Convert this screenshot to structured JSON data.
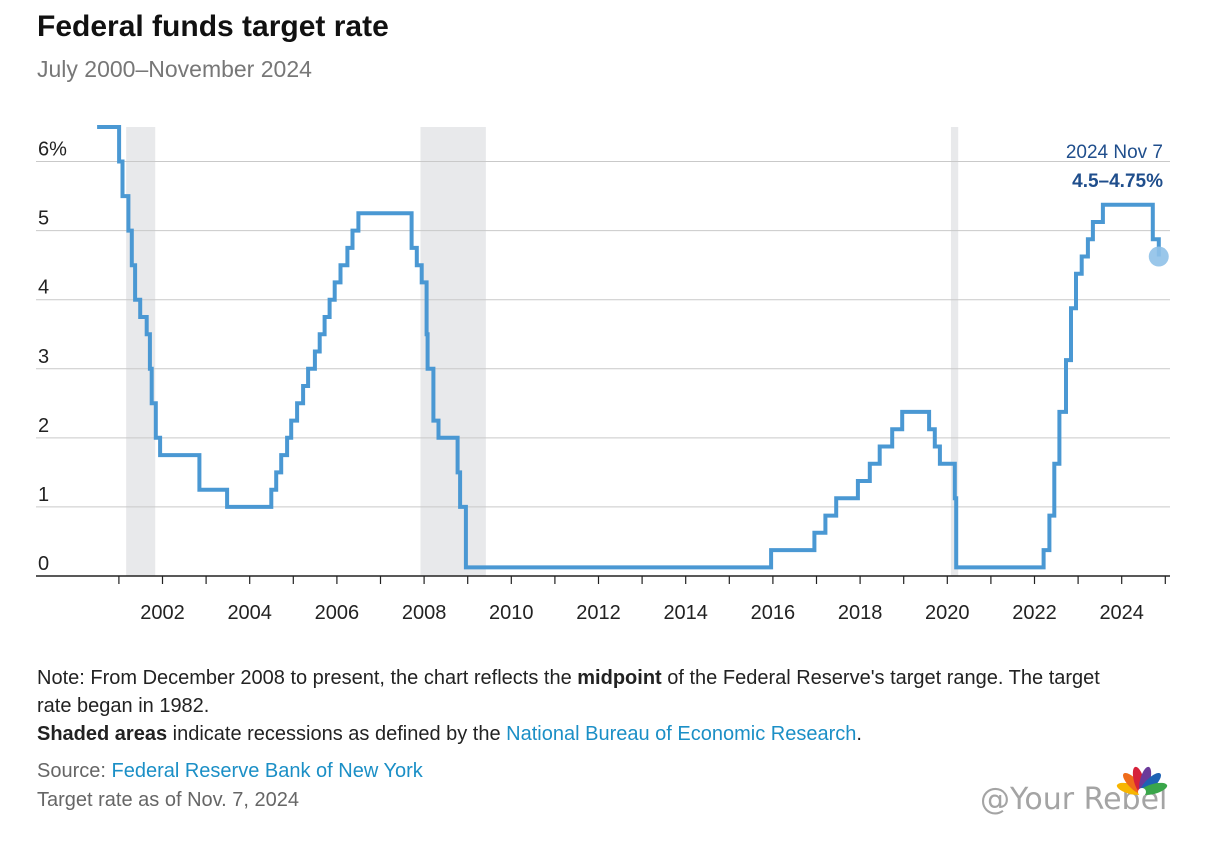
{
  "header": {
    "title": "Federal funds target rate",
    "subtitle": "July 2000–November 2024"
  },
  "chart_data": {
    "type": "line",
    "title": "Federal funds target rate",
    "subtitle": "July 2000–November 2024",
    "xlabel": "",
    "ylabel": "",
    "y_unit": "%",
    "xlim": [
      "2000-07-01",
      "2024-11-30"
    ],
    "ylim": [
      0,
      6.5
    ],
    "y_ticks": [
      0,
      1,
      2,
      3,
      4,
      5,
      6
    ],
    "y_tick_labels": [
      "0",
      "1",
      "2",
      "3",
      "4",
      "5",
      "6%"
    ],
    "x_ticks": [
      "2002",
      "2004",
      "2006",
      "2008",
      "2010",
      "2012",
      "2014",
      "2016",
      "2018",
      "2020",
      "2022",
      "2024"
    ],
    "grid": "horizontal",
    "step": true,
    "line_color": "#4a98d3",
    "recession_color": "#e8e9eb",
    "recessions": [
      {
        "start": "2001-03",
        "end": "2001-11"
      },
      {
        "start": "2007-12",
        "end": "2009-06"
      },
      {
        "start": "2020-02",
        "end": "2020-04"
      }
    ],
    "series": [
      {
        "values": [
          {
            "date": "2000-07-01",
            "value": 6.5
          },
          {
            "date": "2001-01-03",
            "value": 6.0
          },
          {
            "date": "2001-01-31",
            "value": 5.5
          },
          {
            "date": "2001-03-20",
            "value": 5.0
          },
          {
            "date": "2001-04-18",
            "value": 4.5
          },
          {
            "date": "2001-05-15",
            "value": 4.0
          },
          {
            "date": "2001-06-27",
            "value": 3.75
          },
          {
            "date": "2001-08-21",
            "value": 3.5
          },
          {
            "date": "2001-09-17",
            "value": 3.0
          },
          {
            "date": "2001-10-02",
            "value": 2.5
          },
          {
            "date": "2001-11-06",
            "value": 2.0
          },
          {
            "date": "2001-12-11",
            "value": 1.75
          },
          {
            "date": "2002-11-06",
            "value": 1.25
          },
          {
            "date": "2003-06-25",
            "value": 1.0
          },
          {
            "date": "2004-06-30",
            "value": 1.25
          },
          {
            "date": "2004-08-10",
            "value": 1.5
          },
          {
            "date": "2004-09-21",
            "value": 1.75
          },
          {
            "date": "2004-11-10",
            "value": 2.0
          },
          {
            "date": "2004-12-14",
            "value": 2.25
          },
          {
            "date": "2005-02-02",
            "value": 2.5
          },
          {
            "date": "2005-03-22",
            "value": 2.75
          },
          {
            "date": "2005-05-03",
            "value": 3.0
          },
          {
            "date": "2005-06-30",
            "value": 3.25
          },
          {
            "date": "2005-08-09",
            "value": 3.5
          },
          {
            "date": "2005-09-20",
            "value": 3.75
          },
          {
            "date": "2005-11-01",
            "value": 4.0
          },
          {
            "date": "2005-12-13",
            "value": 4.25
          },
          {
            "date": "2006-01-31",
            "value": 4.5
          },
          {
            "date": "2006-03-28",
            "value": 4.75
          },
          {
            "date": "2006-05-10",
            "value": 5.0
          },
          {
            "date": "2006-06-29",
            "value": 5.25
          },
          {
            "date": "2007-09-18",
            "value": 4.75
          },
          {
            "date": "2007-10-31",
            "value": 4.5
          },
          {
            "date": "2007-12-11",
            "value": 4.25
          },
          {
            "date": "2008-01-22",
            "value": 3.5
          },
          {
            "date": "2008-01-30",
            "value": 3.0
          },
          {
            "date": "2008-03-18",
            "value": 2.25
          },
          {
            "date": "2008-04-30",
            "value": 2.0
          },
          {
            "date": "2008-10-08",
            "value": 1.5
          },
          {
            "date": "2008-10-29",
            "value": 1.0
          },
          {
            "date": "2008-12-16",
            "value": 0.125
          },
          {
            "date": "2015-12-16",
            "value": 0.375
          },
          {
            "date": "2016-12-14",
            "value": 0.625
          },
          {
            "date": "2017-03-15",
            "value": 0.875
          },
          {
            "date": "2017-06-14",
            "value": 1.125
          },
          {
            "date": "2017-12-13",
            "value": 1.375
          },
          {
            "date": "2018-03-21",
            "value": 1.625
          },
          {
            "date": "2018-06-13",
            "value": 1.875
          },
          {
            "date": "2018-09-26",
            "value": 2.125
          },
          {
            "date": "2018-12-19",
            "value": 2.375
          },
          {
            "date": "2019-07-31",
            "value": 2.125
          },
          {
            "date": "2019-09-18",
            "value": 1.875
          },
          {
            "date": "2019-10-30",
            "value": 1.625
          },
          {
            "date": "2020-03-03",
            "value": 1.125
          },
          {
            "date": "2020-03-15",
            "value": 0.125
          },
          {
            "date": "2022-03-16",
            "value": 0.375
          },
          {
            "date": "2022-05-04",
            "value": 0.875
          },
          {
            "date": "2022-06-15",
            "value": 1.625
          },
          {
            "date": "2022-07-27",
            "value": 2.375
          },
          {
            "date": "2022-09-21",
            "value": 3.125
          },
          {
            "date": "2022-11-02",
            "value": 3.875
          },
          {
            "date": "2022-12-14",
            "value": 4.375
          },
          {
            "date": "2023-02-01",
            "value": 4.625
          },
          {
            "date": "2023-03-22",
            "value": 4.875
          },
          {
            "date": "2023-05-03",
            "value": 5.125
          },
          {
            "date": "2023-07-26",
            "value": 5.375
          },
          {
            "date": "2024-09-18",
            "value": 4.875
          },
          {
            "date": "2024-11-07",
            "value": 4.625
          }
        ]
      }
    ],
    "end_marker": {
      "date": "2024-11-07",
      "value": 4.625
    },
    "annotation": {
      "line1": "2024 Nov 7",
      "line2": "4.5–4.75%"
    }
  },
  "notes": {
    "note_prefix": "Note: From December 2008 to present, the chart reflects the ",
    "note_bold": "midpoint",
    "note_suffix": " of the Federal Reserve's target range. The target rate began in 1982.",
    "shaded_bold": "Shaded areas",
    "shaded_text": " indicate recessions as defined by the ",
    "shaded_link": "National Bureau of Economic Research",
    "shaded_end": ".",
    "source_label": "Source: ",
    "source_link": "Federal Reserve Bank of New York",
    "asof": "Target rate as of Nov. 7, 2024"
  },
  "branding": {
    "logo_icon": "cnbc-peacock-icon",
    "watermark": "@Your Rebel"
  }
}
